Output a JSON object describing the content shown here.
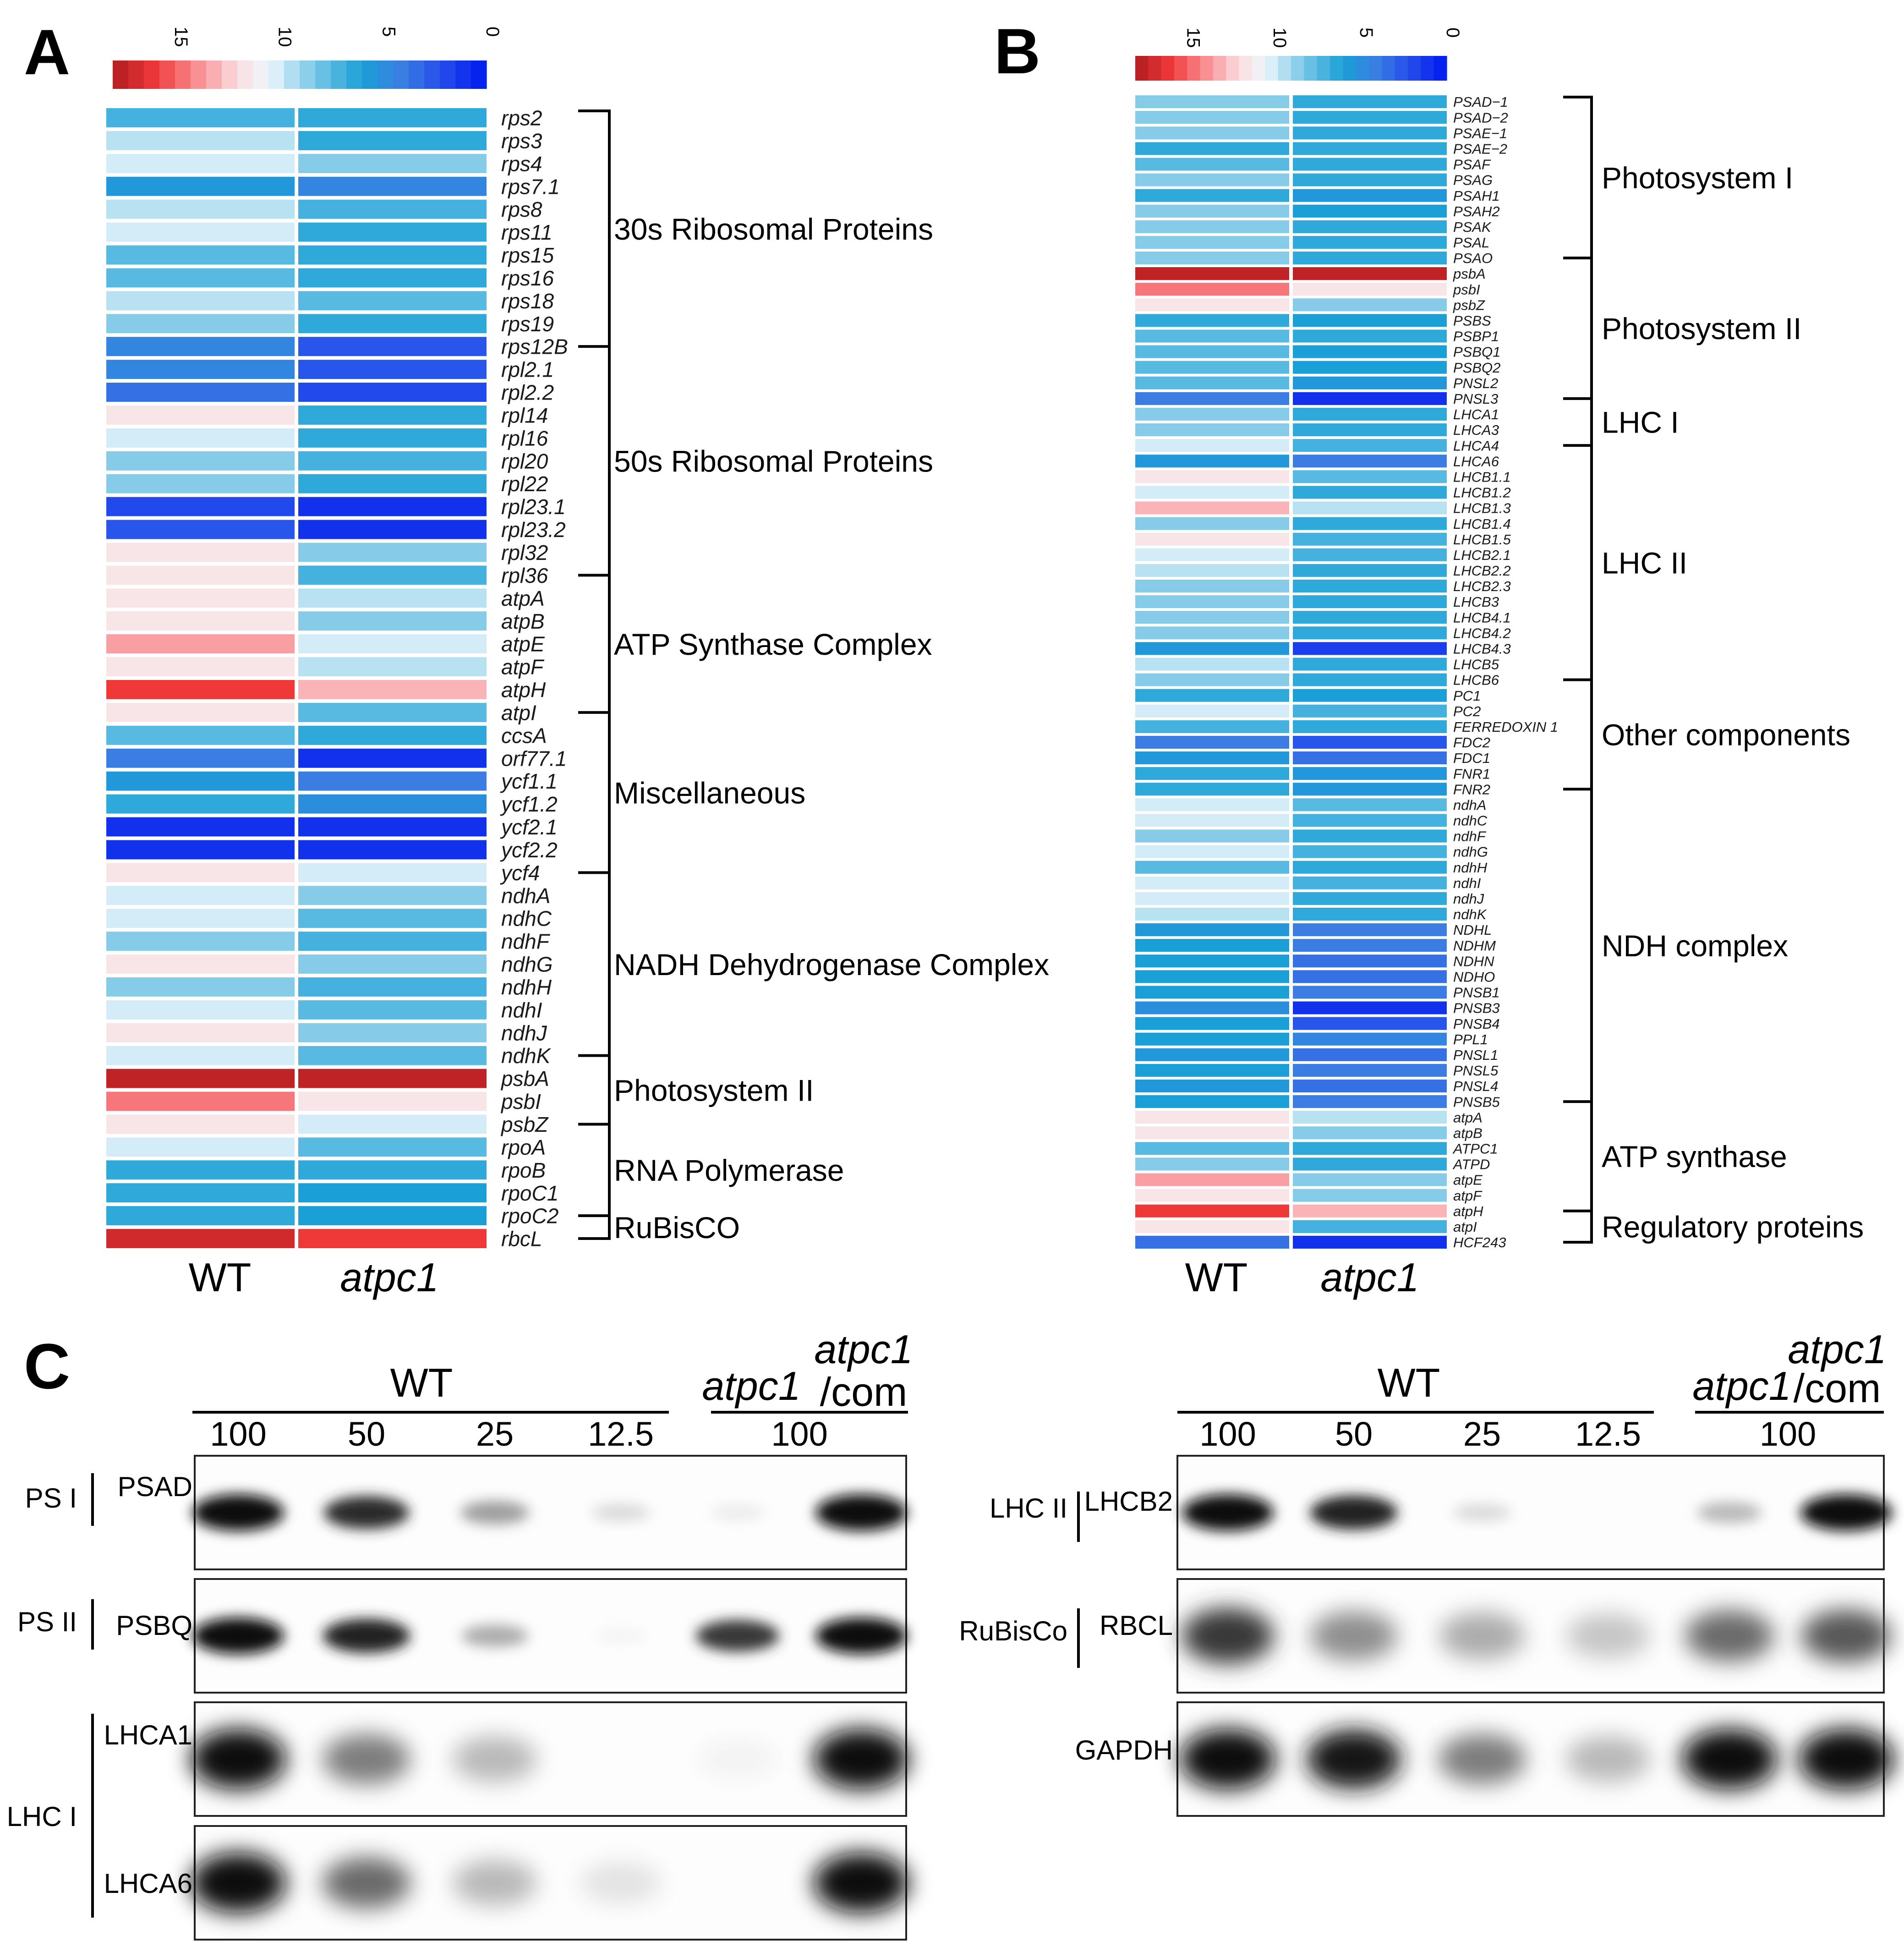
{
  "figure": {
    "panels": [
      "A",
      "B",
      "C"
    ],
    "colorbar_ticks": [
      "15",
      "10",
      "5",
      "0"
    ],
    "columns": [
      "WT",
      "atpc1"
    ]
  },
  "chart_data": [
    {
      "type": "heatmap",
      "panel": "A",
      "columns": [
        "WT",
        "atpc1"
      ],
      "colorbar_range": [
        0,
        18
      ],
      "palette": {
        "high": "#b01c20",
        "mid": "#e7f4fb",
        "low": "#0019ee"
      },
      "rows": [
        {
          "gene": "rps2",
          "wt": 7.0,
          "atpc1": 6.5
        },
        {
          "gene": "rps3",
          "wt": 9.5,
          "atpc1": 6.5
        },
        {
          "gene": "rps4",
          "wt": 10.0,
          "atpc1": 8.5
        },
        {
          "gene": "rps7.1",
          "wt": 5.5,
          "atpc1": 4.5
        },
        {
          "gene": "rps8",
          "wt": 9.5,
          "atpc1": 7.0
        },
        {
          "gene": "rps11",
          "wt": 10.0,
          "atpc1": 6.5
        },
        {
          "gene": "rps15",
          "wt": 7.5,
          "atpc1": 6.5
        },
        {
          "gene": "rps16",
          "wt": 7.5,
          "atpc1": 6.5
        },
        {
          "gene": "rps18",
          "wt": 9.5,
          "atpc1": 7.5
        },
        {
          "gene": "rps19",
          "wt": 8.5,
          "atpc1": 6.5
        },
        {
          "gene": "rps12B",
          "wt": 4.5,
          "atpc1": 2.5
        },
        {
          "gene": "rpl2.1",
          "wt": 4.5,
          "atpc1": 2.5
        },
        {
          "gene": "rpl2.2",
          "wt": 3.5,
          "atpc1": 2.0
        },
        {
          "gene": "rpl14",
          "wt": 11.5,
          "atpc1": 6.5
        },
        {
          "gene": "rpl16",
          "wt": 10.0,
          "atpc1": 6.5
        },
        {
          "gene": "rpl20",
          "wt": 8.5,
          "atpc1": 7.0
        },
        {
          "gene": "rpl22",
          "wt": 8.5,
          "atpc1": 6.5
        },
        {
          "gene": "rpl23.1",
          "wt": 2.0,
          "atpc1": 1.0
        },
        {
          "gene": "rpl23.2",
          "wt": 2.5,
          "atpc1": 1.0
        },
        {
          "gene": "rpl32",
          "wt": 11.5,
          "atpc1": 8.5
        },
        {
          "gene": "rpl36",
          "wt": 11.5,
          "atpc1": 7.0
        },
        {
          "gene": "atpA",
          "wt": 11.5,
          "atpc1": 9.5
        },
        {
          "gene": "atpB",
          "wt": 11.5,
          "atpc1": 8.5
        },
        {
          "gene": "atpE",
          "wt": 13.5,
          "atpc1": 10.0
        },
        {
          "gene": "atpF",
          "wt": 11.5,
          "atpc1": 9.5
        },
        {
          "gene": "atpH",
          "wt": 16.0,
          "atpc1": 13.0
        },
        {
          "gene": "atpI",
          "wt": 11.5,
          "atpc1": 7.5
        },
        {
          "gene": "ccsA",
          "wt": 7.5,
          "atpc1": 6.5
        },
        {
          "gene": "orf77.1",
          "wt": 4.0,
          "atpc1": 1.0
        },
        {
          "gene": "ycf1.1",
          "wt": 5.5,
          "atpc1": 4.0
        },
        {
          "gene": "ycf1.2",
          "wt": 6.5,
          "atpc1": 5.0
        },
        {
          "gene": "ycf2.1",
          "wt": 1.0,
          "atpc1": 1.0
        },
        {
          "gene": "ycf2.2",
          "wt": 1.0,
          "atpc1": 1.0
        },
        {
          "gene": "ycf4",
          "wt": 11.5,
          "atpc1": 10.0
        },
        {
          "gene": "ndhA",
          "wt": 10.0,
          "atpc1": 8.5
        },
        {
          "gene": "ndhC",
          "wt": 10.0,
          "atpc1": 7.5
        },
        {
          "gene": "ndhF",
          "wt": 8.5,
          "atpc1": 7.0
        },
        {
          "gene": "ndhG",
          "wt": 11.5,
          "atpc1": 8.5
        },
        {
          "gene": "ndhH",
          "wt": 8.5,
          "atpc1": 7.0
        },
        {
          "gene": "ndhI",
          "wt": 10.0,
          "atpc1": 7.5
        },
        {
          "gene": "ndhJ",
          "wt": 11.5,
          "atpc1": 8.5
        },
        {
          "gene": "ndhK",
          "wt": 10.0,
          "atpc1": 7.5
        },
        {
          "gene": "psbA",
          "wt": 17.5,
          "atpc1": 17.5
        },
        {
          "gene": "psbI",
          "wt": 14.5,
          "atpc1": 11.5
        },
        {
          "gene": "psbZ",
          "wt": 11.5,
          "atpc1": 10.0
        },
        {
          "gene": "rpoA",
          "wt": 10.0,
          "atpc1": 7.5
        },
        {
          "gene": "rpoB",
          "wt": 6.5,
          "atpc1": 6.5
        },
        {
          "gene": "rpoC1",
          "wt": 6.5,
          "atpc1": 6.0
        },
        {
          "gene": "rpoC2",
          "wt": 6.5,
          "atpc1": 6.0
        },
        {
          "gene": "rbcL",
          "wt": 17.0,
          "atpc1": 16.0
        }
      ],
      "groups": [
        {
          "label": "30s Ribosomal Proteins",
          "from": "rps2",
          "to": "rps12B"
        },
        {
          "label": "50s Ribosomal Proteins",
          "from": "rps12B",
          "to": "rpl36"
        },
        {
          "label": "ATP Synthase  Complex",
          "from": "rpl36",
          "to": "atpI"
        },
        {
          "label": "Miscellaneous",
          "from": "atpI",
          "to": "ycf4"
        },
        {
          "label": "NADH Dehydrogenase Complex",
          "from": "ycf4",
          "to": "ndhK"
        },
        {
          "label": "Photosystem II",
          "from": "ndhK",
          "to": "psbZ"
        },
        {
          "label": "RNA Polymerase",
          "from": "psbZ",
          "to": "rpoC2"
        },
        {
          "label": "RuBisCO",
          "from": "rpoC2",
          "to": "rbcL"
        }
      ]
    },
    {
      "type": "heatmap",
      "panel": "B",
      "columns": [
        "WT",
        "atpc1"
      ],
      "colorbar_range": [
        0,
        18
      ],
      "rows": [
        {
          "gene": "PSAD−1",
          "wt": 8.5,
          "atpc1": 6.5
        },
        {
          "gene": "PSAD−2",
          "wt": 8.5,
          "atpc1": 6.5
        },
        {
          "gene": "PSAE−1",
          "wt": 8.5,
          "atpc1": 6.5
        },
        {
          "gene": "PSAE−2",
          "wt": 6.5,
          "atpc1": 6.5
        },
        {
          "gene": "PSAF",
          "wt": 7.5,
          "atpc1": 6.5
        },
        {
          "gene": "PSAG",
          "wt": 8.5,
          "atpc1": 6.5
        },
        {
          "gene": "PSAH1",
          "wt": 6.5,
          "atpc1": 5.5
        },
        {
          "gene": "PSAH2",
          "wt": 8.5,
          "atpc1": 6.0
        },
        {
          "gene": "PSAK",
          "wt": 8.5,
          "atpc1": 6.5
        },
        {
          "gene": "PSAL",
          "wt": 8.5,
          "atpc1": 6.5
        },
        {
          "gene": "PSAO",
          "wt": 8.5,
          "atpc1": 6.5
        },
        {
          "gene": "psbA",
          "wt": 17.5,
          "atpc1": 17.5
        },
        {
          "gene": "psbI",
          "wt": 14.5,
          "atpc1": 11.5
        },
        {
          "gene": "psbZ",
          "wt": 11.5,
          "atpc1": 8.5
        },
        {
          "gene": "PSBS",
          "wt": 6.5,
          "atpc1": 6.0
        },
        {
          "gene": "PSBP1",
          "wt": 7.5,
          "atpc1": 6.5
        },
        {
          "gene": "PSBQ1",
          "wt": 7.5,
          "atpc1": 6.0
        },
        {
          "gene": "PSBQ2",
          "wt": 7.5,
          "atpc1": 6.0
        },
        {
          "gene": "PNSL2",
          "wt": 7.5,
          "atpc1": 5.5
        },
        {
          "gene": "PNSL3",
          "wt": 4.0,
          "atpc1": 1.0
        },
        {
          "gene": "LHCA1",
          "wt": 8.5,
          "atpc1": 6.5
        },
        {
          "gene": "LHCA3",
          "wt": 8.5,
          "atpc1": 6.5
        },
        {
          "gene": "LHCA4",
          "wt": 10.0,
          "atpc1": 7.0
        },
        {
          "gene": "LHCA6",
          "wt": 5.5,
          "atpc1": 4.0
        },
        {
          "gene": "LHCB1.1",
          "wt": 11.5,
          "atpc1": 7.5
        },
        {
          "gene": "LHCB1.2",
          "wt": 10.0,
          "atpc1": 6.5
        },
        {
          "gene": "LHCB1.3",
          "wt": 13.0,
          "atpc1": 9.5
        },
        {
          "gene": "LHCB1.4",
          "wt": 8.5,
          "atpc1": 6.5
        },
        {
          "gene": "LHCB1.5",
          "wt": 11.5,
          "atpc1": 7.0
        },
        {
          "gene": "LHCB2.1",
          "wt": 10.0,
          "atpc1": 7.0
        },
        {
          "gene": "LHCB2.2",
          "wt": 9.5,
          "atpc1": 6.5
        },
        {
          "gene": "LHCB2.3",
          "wt": 8.5,
          "atpc1": 6.5
        },
        {
          "gene": "LHCB3",
          "wt": 8.5,
          "atpc1": 6.5
        },
        {
          "gene": "LHCB4.1",
          "wt": 8.5,
          "atpc1": 6.5
        },
        {
          "gene": "LHCB4.2",
          "wt": 8.5,
          "atpc1": 6.5
        },
        {
          "gene": "LHCB4.3",
          "wt": 5.5,
          "atpc1": 1.5
        },
        {
          "gene": "LHCB5",
          "wt": 9.5,
          "atpc1": 6.5
        },
        {
          "gene": "LHCB6",
          "wt": 8.5,
          "atpc1": 6.5
        },
        {
          "gene": "PC1",
          "wt": 6.5,
          "atpc1": 6.0
        },
        {
          "gene": "PC2",
          "wt": 10.0,
          "atpc1": 7.0
        },
        {
          "gene": "FERREDOXIN 1",
          "wt": 7.0,
          "atpc1": 6.5
        },
        {
          "gene": "FDC2",
          "wt": 4.0,
          "atpc1": 2.5
        },
        {
          "gene": "FDC1",
          "wt": 5.5,
          "atpc1": 3.5
        },
        {
          "gene": "FNR1",
          "wt": 6.5,
          "atpc1": 5.5
        },
        {
          "gene": "FNR2",
          "wt": 6.5,
          "atpc1": 5.5
        },
        {
          "gene": "ndhA",
          "wt": 10.0,
          "atpc1": 7.5
        },
        {
          "gene": "ndhC",
          "wt": 10.0,
          "atpc1": 7.0
        },
        {
          "gene": "ndhF",
          "wt": 8.5,
          "atpc1": 6.5
        },
        {
          "gene": "ndhG",
          "wt": 10.0,
          "atpc1": 7.0
        },
        {
          "gene": "ndhH",
          "wt": 7.5,
          "atpc1": 6.5
        },
        {
          "gene": "ndhI",
          "wt": 10.0,
          "atpc1": 7.0
        },
        {
          "gene": "ndhJ",
          "wt": 10.0,
          "atpc1": 6.5
        },
        {
          "gene": "ndhK",
          "wt": 9.5,
          "atpc1": 6.5
        },
        {
          "gene": "NDHL",
          "wt": 5.5,
          "atpc1": 4.0
        },
        {
          "gene": "NDHM",
          "wt": 6.0,
          "atpc1": 4.0
        },
        {
          "gene": "NDHN",
          "wt": 6.0,
          "atpc1": 3.5
        },
        {
          "gene": "NDHO",
          "wt": 6.0,
          "atpc1": 3.5
        },
        {
          "gene": "PNSB1",
          "wt": 6.0,
          "atpc1": 4.0
        },
        {
          "gene": "PNSB3",
          "wt": 5.0,
          "atpc1": 1.0
        },
        {
          "gene": "PNSB4",
          "wt": 6.0,
          "atpc1": 2.5
        },
        {
          "gene": "PPL1",
          "wt": 6.0,
          "atpc1": 4.5
        },
        {
          "gene": "PNSL1",
          "wt": 5.5,
          "atpc1": 3.5
        },
        {
          "gene": "PNSL5",
          "wt": 6.0,
          "atpc1": 4.0
        },
        {
          "gene": "PNSL4",
          "wt": 5.5,
          "atpc1": 3.5
        },
        {
          "gene": "PNSB5",
          "wt": 6.0,
          "atpc1": 4.0
        },
        {
          "gene": "atpA",
          "wt": 11.5,
          "atpc1": 9.5
        },
        {
          "gene": "atpB",
          "wt": 11.5,
          "atpc1": 8.5
        },
        {
          "gene": "ATPC1",
          "wt": 7.5,
          "atpc1": 6.5
        },
        {
          "gene": "ATPD",
          "wt": 8.5,
          "atpc1": 6.5
        },
        {
          "gene": "atpE",
          "wt": 13.5,
          "atpc1": 8.5
        },
        {
          "gene": "atpF",
          "wt": 11.5,
          "atpc1": 8.5
        },
        {
          "gene": "atpH",
          "wt": 16.0,
          "atpc1": 13.0
        },
        {
          "gene": "atpI",
          "wt": 11.5,
          "atpc1": 7.0
        },
        {
          "gene": "HCF243",
          "wt": 3.5,
          "atpc1": 1.0
        }
      ],
      "groups": [
        {
          "label": "Photosystem I",
          "from": "PSAD−1",
          "to": "PSAO"
        },
        {
          "label": "Photosystem II",
          "from": "PSAO",
          "to": "PNSL3"
        },
        {
          "label": "LHC I",
          "from": "PNSL3",
          "to": "LHCA4"
        },
        {
          "label": "LHC II",
          "from": "LHCA4",
          "to": "LHCB6"
        },
        {
          "label": "Other components",
          "from": "LHCB6",
          "to": "FNR2"
        },
        {
          "label": "NDH complex",
          "from": "FNR2",
          "to": "PNSB5"
        },
        {
          "label": "ATP synthase",
          "from": "PNSB5",
          "to": "atpH"
        },
        {
          "label": "Regulatory proteins",
          "from": "atpH",
          "to": "HCF243"
        }
      ]
    }
  ],
  "panel_c": {
    "left": {
      "header": {
        "wt": "WT",
        "mut": "atpc1",
        "comp_line1": "atpc1",
        "comp_line2": "/com"
      },
      "lanes": [
        "100",
        "50",
        "25",
        "12.5",
        "100"
      ],
      "blots": [
        {
          "group": "PS I",
          "protein": "PSAD",
          "intensities": [
            1.0,
            0.85,
            0.45,
            0.2,
            0.1,
            1.0
          ]
        },
        {
          "group": "PS II",
          "protein": "PSBQ",
          "intensities": [
            1.0,
            0.9,
            0.4,
            0.04,
            0.8,
            1.0
          ]
        },
        {
          "group": "LHC I",
          "protein": "LHCA1",
          "intensities": [
            1.0,
            0.55,
            0.35,
            0.0,
            0.04,
            1.0
          ]
        },
        {
          "group": "",
          "protein": "LHCA6",
          "intensities": [
            1.0,
            0.6,
            0.35,
            0.15,
            0.0,
            1.0
          ]
        }
      ]
    },
    "right": {
      "header": {
        "wt": "WT",
        "mut": "atpc1",
        "comp_line1": "atpc1",
        "comp_line2": "/com"
      },
      "lanes": [
        "100",
        "50",
        "25",
        "12.5",
        "100"
      ],
      "blots": [
        {
          "group": "LHC II",
          "protein": "LHCB2",
          "intensities": [
            1.0,
            0.9,
            0.2,
            0.0,
            0.35,
            1.0
          ]
        },
        {
          "group": "RuBisCo",
          "protein": "RBCL",
          "intensities": [
            0.8,
            0.5,
            0.4,
            0.3,
            0.6,
            0.65
          ]
        },
        {
          "group": "",
          "protein": "GAPDH",
          "intensities": [
            1.0,
            0.95,
            0.55,
            0.35,
            1.0,
            1.0
          ]
        }
      ]
    }
  }
}
